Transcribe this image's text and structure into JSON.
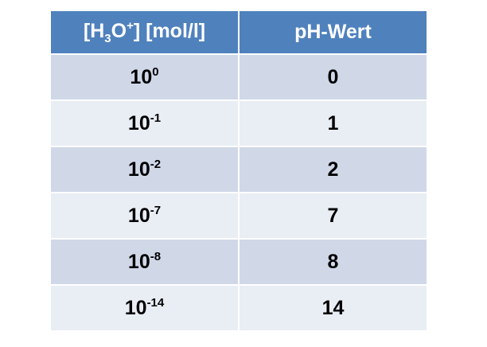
{
  "table": {
    "header": [
      {
        "parts": [
          "[H",
          "3",
          "O",
          "+",
          "] [mol/l]"
        ]
      },
      "pH-Wert"
    ],
    "rows": [
      [
        {
          "base": "10",
          "exp": "0"
        },
        "0"
      ],
      [
        {
          "base": "10",
          "exp": "-1"
        },
        "1"
      ],
      [
        {
          "base": "10",
          "exp": "-2"
        },
        "2"
      ],
      [
        {
          "base": "10",
          "exp": "-7"
        },
        "7"
      ],
      [
        {
          "base": "10",
          "exp": "-8"
        },
        "8"
      ],
      [
        {
          "base": "10",
          "exp": "-14"
        },
        "14"
      ]
    ]
  }
}
